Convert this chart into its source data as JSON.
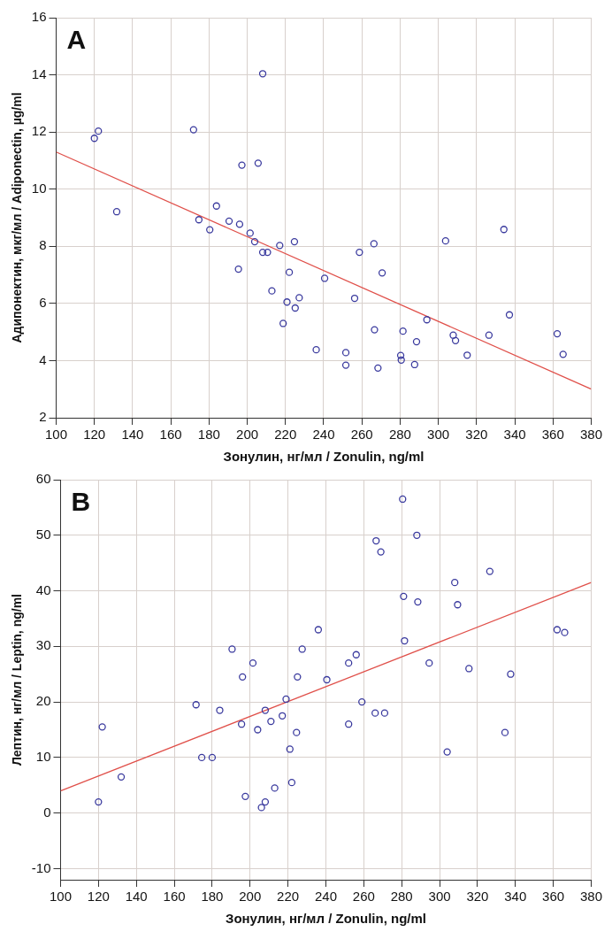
{
  "chart_data": [
    {
      "type": "scatter",
      "annotations": [
        "A"
      ],
      "xlabel": "Зонулин, нг/мл / Zonulin, ng/ml",
      "ylabel": "Адипонектин, мкг/мл / Adiponectin, µg/ml",
      "xlim": [
        100,
        380
      ],
      "xticks": [
        100,
        120,
        140,
        160,
        180,
        200,
        220,
        240,
        260,
        280,
        300,
        320,
        340,
        360,
        380
      ],
      "ylim": [
        2,
        16
      ],
      "yticks": [
        2,
        4,
        6,
        8,
        10,
        12,
        14,
        16
      ],
      "grid": true,
      "series": [
        {
          "color": "#3a3a9e",
          "marker": "circle",
          "x": [
            120,
            122.1,
            131.7,
            171.9,
            174.7,
            180.4,
            183.9,
            190.5,
            196,
            195.4,
            197.2,
            201.5,
            203.9,
            205.7,
            208.1,
            208.1,
            210.6,
            212.9,
            217,
            218.8,
            220.8,
            222,
            224.7,
            225.1,
            227.2,
            236.1,
            240.5,
            251.6,
            251.6,
            256.2,
            258.7,
            266.3,
            266.6,
            268.4,
            270.6,
            280.3,
            280.6,
            281.5,
            287.6,
            288.6,
            294,
            303.8,
            307.8,
            309,
            315.1,
            326.5,
            334.3,
            337.2,
            362.2,
            365.3
          ],
          "values": [
            11.78,
            12.03,
            9.21,
            12.08,
            8.93,
            8.58,
            9.41,
            8.88,
            8.77,
            7.2,
            10.84,
            8.46,
            8.16,
            10.91,
            14.04,
            7.79,
            7.79,
            6.44,
            8.03,
            5.3,
            6.05,
            7.09,
            8.16,
            5.84,
            6.2,
            4.38,
            6.88,
            4.28,
            3.84,
            6.18,
            7.79,
            8.09,
            5.08,
            3.74,
            7.07,
            4.18,
            4.02,
            5.03,
            3.86,
            4.66,
            5.43,
            8.19,
            4.89,
            4.7,
            4.19,
            4.89,
            8.59,
            5.6,
            4.94,
            4.22
          ]
        },
        {
          "type": "line",
          "marker": "none",
          "color": "#e0504a",
          "x": [
            100,
            380
          ],
          "values": [
            11.3,
            3
          ]
        }
      ]
    },
    {
      "type": "scatter",
      "annotations": [
        "B"
      ],
      "xlabel": "Зонулин, нг/мл / Zonulin, ng/ml",
      "ylabel": "Лептин, нг/мл / Leptin, ng/ml",
      "xlim": [
        100,
        380
      ],
      "xticks": [
        100,
        120,
        140,
        160,
        180,
        200,
        220,
        240,
        260,
        280,
        300,
        320,
        340,
        360,
        380
      ],
      "ylim": [
        -12,
        60
      ],
      "yticks": [
        -10,
        0,
        10,
        20,
        30,
        40,
        50,
        60
      ],
      "grid": true,
      "series": [
        {
          "color": "#3a3a9e",
          "marker": "circle",
          "x": [
            120,
            122,
            132,
            171.5,
            174.5,
            180,
            184,
            190.5,
            196,
            195.5,
            197.5,
            201.5,
            204,
            208,
            206,
            208,
            211,
            213,
            217,
            219,
            221,
            222,
            224.5,
            225,
            227.5,
            236,
            240.5,
            252,
            252,
            256,
            259,
            266,
            271,
            266.5,
            269,
            280.5,
            281,
            281.5,
            288,
            288.5,
            294.5,
            304,
            308,
            309.5,
            315.5,
            326.5,
            334.5,
            337.5,
            362,
            366
          ],
          "values": [
            2,
            15.5,
            6.5,
            19.5,
            10,
            10,
            18.5,
            29.5,
            24.5,
            16,
            3,
            27,
            15,
            18.5,
            1,
            2,
            16.5,
            4.5,
            17.5,
            20.5,
            11.5,
            5.5,
            14.5,
            24.5,
            29.5,
            33,
            24,
            27,
            16,
            28.5,
            20,
            18,
            18,
            49,
            47,
            56.5,
            39,
            31,
            50,
            38,
            27,
            11,
            41.5,
            37.5,
            26,
            43.5,
            14.5,
            25,
            33,
            32.5
          ]
        },
        {
          "type": "line",
          "marker": "none",
          "color": "#e0504a",
          "x": [
            100,
            380
          ],
          "values": [
            4,
            41.5
          ]
        }
      ]
    }
  ]
}
